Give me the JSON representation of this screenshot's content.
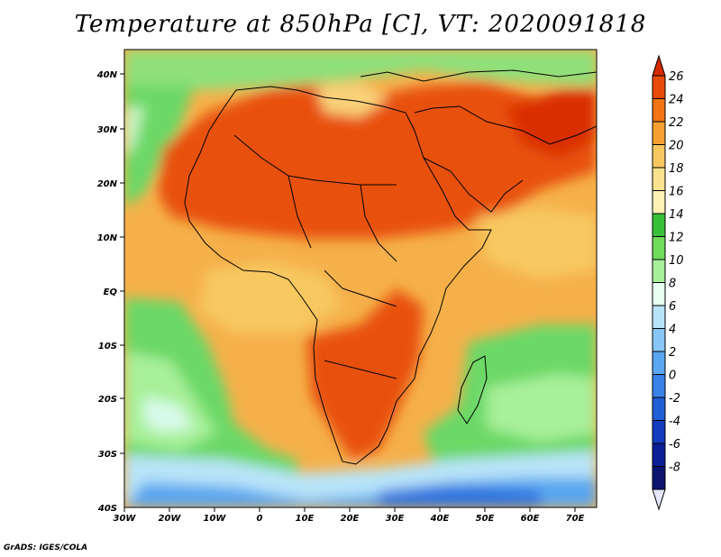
{
  "title": "Temperature at 850hPa [C], VT: 2020091818",
  "credit": "GrADS: IGES/COLA",
  "map": {
    "lat_labels": [
      "40N",
      "30N",
      "20N",
      "10N",
      "EQ",
      "10S",
      "20S",
      "30S",
      "40S"
    ],
    "lon_labels": [
      "30W",
      "20W",
      "10W",
      "0",
      "10E",
      "20E",
      "30E",
      "40E",
      "50E",
      "60E",
      "70E"
    ],
    "region": "Africa and surrounding oceans"
  },
  "colorbar": {
    "ticks": [
      "26",
      "24",
      "22",
      "20",
      "18",
      "16",
      "14",
      "12",
      "10",
      "8",
      "6",
      "4",
      "2",
      "0",
      "-2",
      "-4",
      "-6",
      "-8"
    ],
    "colors": [
      "#d42a00",
      "#e84a0a",
      "#f27414",
      "#f5a030",
      "#f8c860",
      "#fbe28e",
      "#fdf2b4",
      "#39c039",
      "#70dc5a",
      "#a8f09a",
      "#e6fff0",
      "#b8e4f8",
      "#88c6f5",
      "#5aa6f0",
      "#3a82e6",
      "#2060d6",
      "#143cbe",
      "#0c2096",
      "#0c146e",
      "#e6e6ff"
    ]
  }
}
